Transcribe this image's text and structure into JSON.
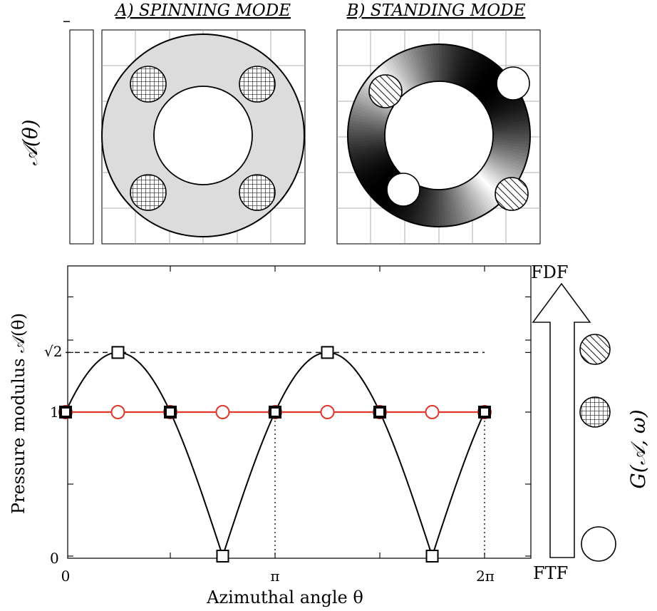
{
  "panels": {
    "spinning_title": "A) SPINNING MODE",
    "standing_title": "B) STANDING MODE",
    "colorbar_marker": "–",
    "left_axis_label": "𝒜(θ)"
  },
  "chart_data": {
    "type": "line",
    "xlabel": "Azimuthal angle θ",
    "ylabel": "Pressure modulus 𝒜(θ)",
    "x_ticks": [
      "0",
      "π",
      "2π"
    ],
    "y_ticks": [
      "0",
      "1",
      "√2"
    ],
    "xlim": [
      0,
      6.5
    ],
    "ylim": [
      0,
      2.1
    ],
    "reference_line_y": 1.414,
    "series": [
      {
        "marker": "square",
        "color": "#000000",
        "x": [
          0,
          0.785,
          1.571,
          2.356,
          3.142,
          3.927,
          4.712,
          5.498,
          6.283
        ],
        "y": [
          1,
          1.414,
          1,
          0,
          1,
          1.414,
          1,
          0,
          1
        ]
      },
      {
        "marker": "circle",
        "color": "#e2372b",
        "x": [
          0,
          0.785,
          1.571,
          2.356,
          3.142,
          3.927,
          4.712,
          5.498,
          6.283
        ],
        "y": [
          1,
          1,
          1,
          1,
          1,
          1,
          1,
          1,
          1
        ]
      }
    ]
  },
  "side": {
    "top_label": "FDF",
    "bottom_label": "FTF",
    "gain_label": "G(𝒜, ω)"
  }
}
